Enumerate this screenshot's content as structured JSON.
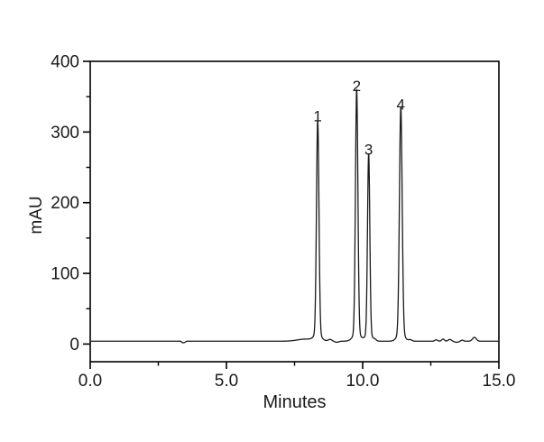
{
  "figure": {
    "background": "#ffffff",
    "description": "HPLC chromatogram with four numbered peaks"
  },
  "chart_data": {
    "type": "line",
    "title": "",
    "xlabel": "Minutes",
    "ylabel": "mAU",
    "xlim": [
      0.0,
      15.0
    ],
    "ylim": [
      -25,
      400
    ],
    "grid": false,
    "legend": null,
    "line_color": "#1a1a1a",
    "axis_color": "#000000",
    "x_major_ticks": [
      {
        "value": 0.0,
        "label": "0.0"
      },
      {
        "value": 5.0,
        "label": "5.0"
      },
      {
        "value": 10.0,
        "label": "10.0"
      },
      {
        "value": 15.0,
        "label": "15.0"
      }
    ],
    "x_minor_ticks": [
      2.5,
      7.5,
      12.5
    ],
    "y_major_ticks": [
      {
        "value": 0,
        "label": "0"
      },
      {
        "value": 100,
        "label": "100"
      },
      {
        "value": 200,
        "label": "200"
      },
      {
        "value": 300,
        "label": "300"
      },
      {
        "value": 400,
        "label": "400"
      }
    ],
    "y_minor_ticks": [
      50,
      150,
      250,
      350
    ],
    "baseline_mau": 4,
    "peaks": [
      {
        "label": "1",
        "rt_min": 8.35,
        "height_mau": 302,
        "apex_mau": 306,
        "sigma_min": 0.045,
        "flare_height_mau": 10,
        "flare_sigma_min": 0.13
      },
      {
        "label": "2",
        "rt_min": 9.78,
        "height_mau": 345,
        "apex_mau": 349,
        "sigma_min": 0.045,
        "flare_height_mau": 11,
        "flare_sigma_min": 0.14
      },
      {
        "label": "3",
        "rt_min": 10.22,
        "height_mau": 255,
        "apex_mau": 259,
        "sigma_min": 0.042,
        "flare_height_mau": 10,
        "flare_sigma_min": 0.12
      },
      {
        "label": "4",
        "rt_min": 11.4,
        "height_mau": 319,
        "apex_mau": 323,
        "sigma_min": 0.05,
        "flare_height_mau": 12,
        "flare_sigma_min": 0.13
      }
    ],
    "baseline_features": [
      {
        "name": "injection-mark",
        "rt_min": 3.4,
        "height_mau": -2.2,
        "sigma_min": 0.035
      },
      {
        "name": "injection-mark-2",
        "rt_min": 3.47,
        "height_mau": -1.4,
        "sigma_min": 0.03
      },
      {
        "name": "pre-peak1-drift",
        "rt_min": 7.9,
        "height_mau": 3.0,
        "sigma_min": 0.3
      },
      {
        "name": "post-peak1-bump",
        "rt_min": 8.8,
        "height_mau": 2.5,
        "sigma_min": 0.07
      },
      {
        "name": "post-peak1-dip",
        "rt_min": 9.05,
        "height_mau": -1.5,
        "sigma_min": 0.07
      },
      {
        "name": "post-peak3-bump",
        "rt_min": 10.45,
        "height_mau": 2.0,
        "sigma_min": 0.05
      },
      {
        "name": "post-peak4-bump",
        "rt_min": 11.75,
        "height_mau": 2.0,
        "sigma_min": 0.06
      },
      {
        "name": "ripple-1",
        "rt_min": 12.7,
        "height_mau": 2.0,
        "sigma_min": 0.05
      },
      {
        "name": "ripple-2",
        "rt_min": 12.95,
        "height_mau": 3.0,
        "sigma_min": 0.05
      },
      {
        "name": "ripple-3",
        "rt_min": 13.2,
        "height_mau": 2.5,
        "sigma_min": 0.06
      },
      {
        "name": "ripple-4",
        "rt_min": 13.45,
        "height_mau": -1.5,
        "sigma_min": 0.08
      },
      {
        "name": "ripple-5",
        "rt_min": 13.65,
        "height_mau": 1.5,
        "sigma_min": 0.05
      },
      {
        "name": "late-bump",
        "rt_min": 14.1,
        "height_mau": 5.5,
        "sigma_min": 0.07
      }
    ]
  }
}
